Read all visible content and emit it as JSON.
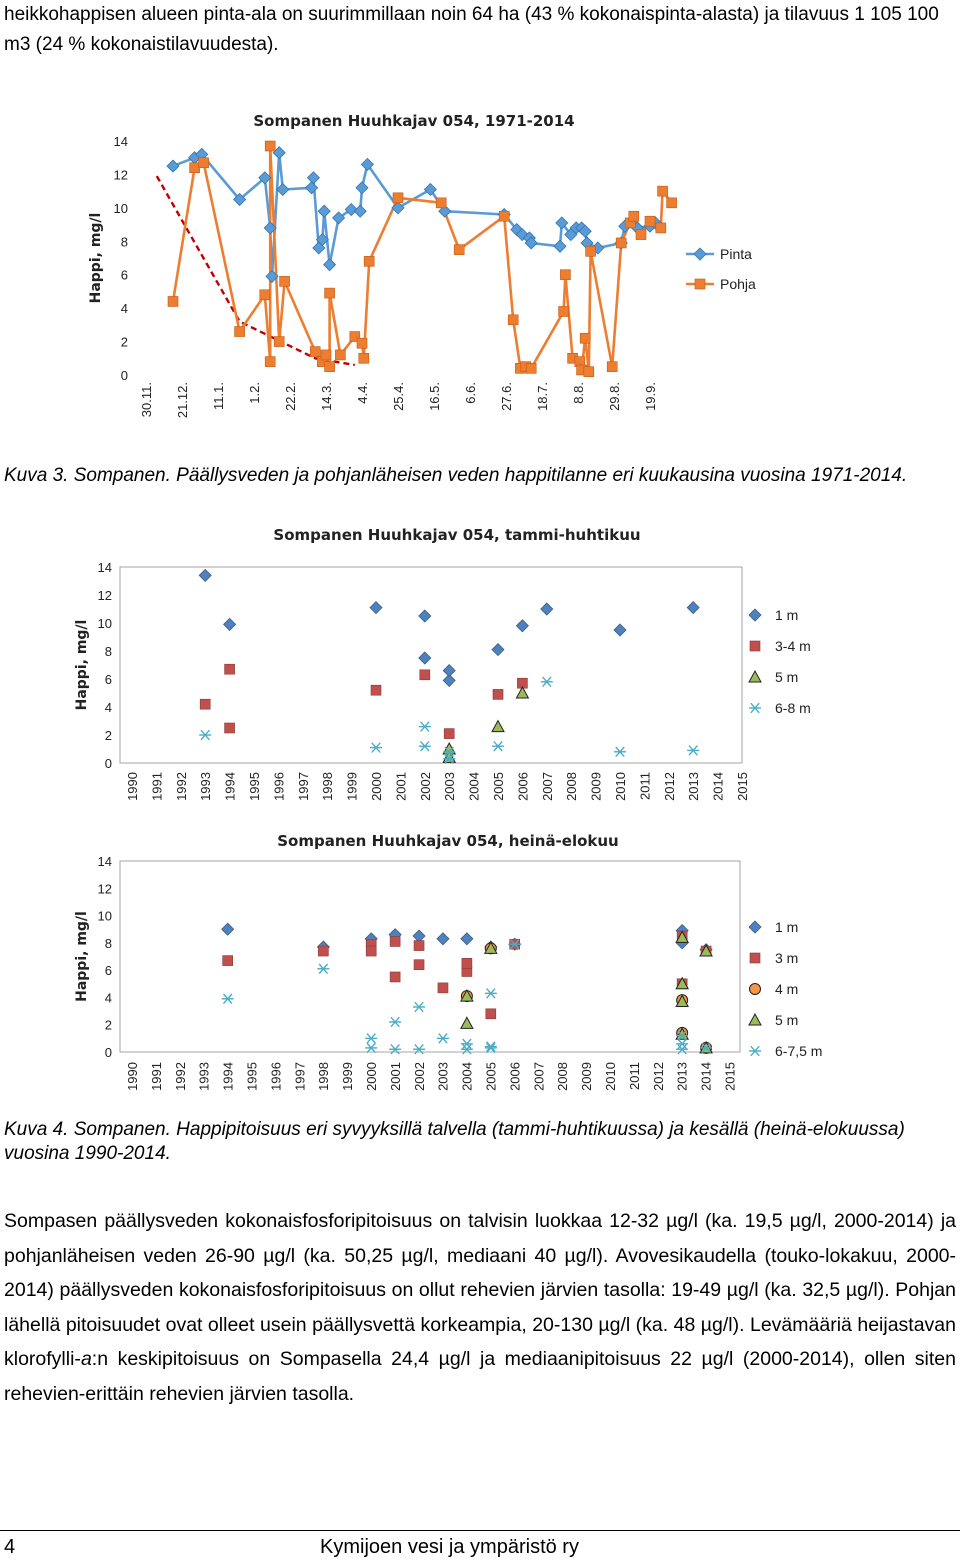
{
  "intro_text": "heikkohappisen alueen pinta-ala on suurimmillaan noin 64 ha (43 % kokonaispinta-alasta) ja tilavuus 1 105 100 m3 (24 % kokonaistilavuudesta).",
  "caption3": "Kuva 3. Sompanen. Päällysveden ja pohjanläheisen veden happitilanne eri kuukausina vuosina 1971-2014.",
  "caption4": "Kuva 4. Sompanen. Happipitoisuus eri syvyyksillä talvella (tammi-huhtikuussa) ja kesällä (heinä-elokuussa) vuosina 1990-2014.",
  "body_pre": "Sompasen päällysveden kokonaisfosforipitoisuus on talvisin luokkaa 12-32 µg/l (ka. 19,5 µg/l, 2000-2014) ja pohjanläheisen veden 26-90 µg/l (ka. 50,25 µg/l, mediaani 40 µg/l). Avovesikaudella (touko-lokakuu, 2000-2014) päällysveden kokonaisfosforipitoisuus on ollut rehevien järvien tasolla: 19-49 µg/l (ka. 32,5 µg/l). Pohjan lähellä pitoisuudet ovat olleet usein päällysvettä korkeampia, 20-130 µg/l (ka. 48 µg/l). Levämääriä heijastavan klorofylli-",
  "body_italic": "a",
  "body_post": ":n keskipitoisuus on Sompasella 24,4 µg/l ja mediaanipitoisuus 22 µg/l (2000-2014), ollen siten rehevien-erittäin rehevien järvien tasolla.",
  "footer": {
    "page": "4",
    "org": "Kymijoen vesi ja ympäristö ry"
  },
  "chart_data": [
    {
      "type": "line",
      "title": "Sompanen Huuhkajav 054, 1971-2014",
      "ylabel": "Happi, mg/l",
      "ylim": [
        0,
        14
      ],
      "yticks": [
        0,
        2,
        4,
        6,
        8,
        10,
        12,
        14
      ],
      "xtick_labels": [
        "30.11.",
        "21.12.",
        "11.1.",
        "1.2.",
        "22.2.",
        "14.3.",
        "4.4.",
        "25.4.",
        "16.5.",
        "6.6.",
        "27.6.",
        "18.7.",
        "8.8.",
        "29.8.",
        "19.9."
      ],
      "x_domain": [
        0,
        14.5
      ],
      "legend_position": "right",
      "colors": {
        "pinta": "#5b9bd5",
        "pohja": "#ed7d31",
        "trend": "#c00000"
      },
      "series": [
        {
          "name": "Pinta",
          "marker": "diamond",
          "color": "#5b9bd5",
          "points": [
            [
              0.75,
              12.5
            ],
            [
              1.35,
              13
            ],
            [
              1.55,
              13.2
            ],
            [
              2.6,
              10.5
            ],
            [
              3.3,
              11.8
            ],
            [
              3.45,
              8.8
            ],
            [
              3.5,
              5.9
            ],
            [
              3.7,
              13.3
            ],
            [
              3.8,
              11.1
            ],
            [
              4.6,
              11.2
            ],
            [
              4.65,
              11.8
            ],
            [
              4.8,
              7.6
            ],
            [
              4.9,
              8.1
            ],
            [
              4.95,
              9.8
            ],
            [
              5.1,
              6.6
            ],
            [
              5.35,
              9.4
            ],
            [
              5.7,
              9.9
            ],
            [
              5.95,
              9.8
            ],
            [
              6.0,
              11.2
            ],
            [
              6.15,
              12.6
            ],
            [
              7.0,
              10
            ],
            [
              7.9,
              11.1
            ],
            [
              8.3,
              9.8
            ],
            [
              9.95,
              9.6
            ],
            [
              10.3,
              8.7
            ],
            [
              10.45,
              8.4
            ],
            [
              10.65,
              8.2
            ],
            [
              10.7,
              7.9
            ],
            [
              11.5,
              7.7
            ],
            [
              11.55,
              9.1
            ],
            [
              11.8,
              8.4
            ],
            [
              11.95,
              8.8
            ],
            [
              12.1,
              8.8
            ],
            [
              12.2,
              8.6
            ],
            [
              12.25,
              7.9
            ],
            [
              12.55,
              7.6
            ],
            [
              13.2,
              7.9
            ],
            [
              13.3,
              8.9
            ],
            [
              13.65,
              8.8
            ],
            [
              14.0,
              8.9
            ],
            [
              14.15,
              9.1
            ]
          ]
        },
        {
          "name": "Pohja",
          "marker": "square",
          "color": "#ed7d31",
          "points": [
            [
              0.75,
              4.4
            ],
            [
              1.35,
              12.4
            ],
            [
              1.6,
              12.7
            ],
            [
              2.6,
              2.6
            ],
            [
              3.3,
              4.8
            ],
            [
              3.45,
              0.8
            ],
            [
              3.45,
              13.7
            ],
            [
              3.7,
              2.0
            ],
            [
              3.85,
              5.6
            ],
            [
              4.7,
              1.4
            ],
            [
              4.9,
              0.8
            ],
            [
              5.0,
              1.2
            ],
            [
              5.1,
              0.5
            ],
            [
              5.1,
              4.9
            ],
            [
              5.4,
              1.2
            ],
            [
              5.8,
              2.3
            ],
            [
              6.0,
              1.9
            ],
            [
              6.05,
              1.0
            ],
            [
              6.2,
              6.8
            ],
            [
              7.0,
              10.6
            ],
            [
              8.2,
              10.3
            ],
            [
              8.7,
              7.5
            ],
            [
              9.95,
              9.5
            ],
            [
              10.2,
              3.3
            ],
            [
              10.4,
              0.4
            ],
            [
              10.55,
              0.5
            ],
            [
              10.7,
              0.4
            ],
            [
              11.6,
              3.8
            ],
            [
              11.65,
              6.0
            ],
            [
              11.85,
              1.0
            ],
            [
              12.05,
              0.8
            ],
            [
              12.1,
              0.3
            ],
            [
              12.2,
              2.2
            ],
            [
              12.3,
              0.2
            ],
            [
              12.35,
              7.4
            ],
            [
              12.95,
              0.5
            ],
            [
              13.2,
              7.9
            ],
            [
              13.45,
              9.1
            ],
            [
              13.55,
              9.5
            ],
            [
              13.75,
              8.4
            ],
            [
              14.0,
              9.2
            ],
            [
              14.3,
              8.8
            ],
            [
              14.35,
              11.0
            ],
            [
              14.6,
              10.3
            ]
          ]
        }
      ],
      "trend": {
        "name": "",
        "dashed": true,
        "points": [
          [
            0.3,
            11.9
          ],
          [
            2.6,
            3.2
          ],
          [
            4.7,
            1.0
          ],
          [
            5.8,
            0.6
          ]
        ]
      }
    },
    {
      "type": "scatter",
      "title": "Sompanen Huuhkajav 054, tammi-huhtikuu",
      "ylabel": "Happi, mg/l",
      "ylim": [
        0,
        14
      ],
      "yticks": [
        0,
        2,
        4,
        6,
        8,
        10,
        12,
        14
      ],
      "xlim": [
        1990,
        2015
      ],
      "categories": [
        "1990",
        "1991",
        "1992",
        "1993",
        "1994",
        "1995",
        "1996",
        "1997",
        "1998",
        "1999",
        "2000",
        "2001",
        "2002",
        "2003",
        "2004",
        "2005",
        "2006",
        "2007",
        "2008",
        "2009",
        "2010",
        "2011",
        "2012",
        "2013",
        "2014",
        "2015"
      ],
      "legend_position": "right",
      "series": [
        {
          "name": "1 m",
          "marker": "diamond",
          "color": "#4f81bd",
          "points": [
            [
              1993,
              13.4
            ],
            [
              1994,
              9.9
            ],
            [
              2000,
              11.1
            ],
            [
              2002,
              10.5
            ],
            [
              2002,
              7.5
            ],
            [
              2003,
              5.9
            ],
            [
              2003,
              6.6
            ],
            [
              2005,
              8.1
            ],
            [
              2006,
              9.8
            ],
            [
              2007,
              11.0
            ],
            [
              2010,
              9.5
            ],
            [
              2013,
              11.1
            ]
          ]
        },
        {
          "name": "3-4 m",
          "marker": "square",
          "color": "#c0504d",
          "points": [
            [
              1993,
              4.2
            ],
            [
              1994,
              6.7
            ],
            [
              1994,
              2.5
            ],
            [
              2000,
              5.2
            ],
            [
              2002,
              6.3
            ],
            [
              2003,
              2.1
            ],
            [
              2005,
              4.9
            ],
            [
              2006,
              5.7
            ]
          ]
        },
        {
          "name": "5 m",
          "marker": "triangle",
          "color": "#9bbb59",
          "points": [
            [
              2003,
              1.0
            ],
            [
              2003,
              0.4
            ],
            [
              2005,
              2.6
            ],
            [
              2006,
              5.0
            ]
          ]
        },
        {
          "name": "6-8 m",
          "marker": "asterisk",
          "color": "#4bacc6",
          "points": [
            [
              1993,
              2.0
            ],
            [
              2000,
              1.1
            ],
            [
              2002,
              2.6
            ],
            [
              2002,
              1.2
            ],
            [
              2003,
              0.8
            ],
            [
              2003,
              0.3
            ],
            [
              2005,
              1.2
            ],
            [
              2007,
              5.8
            ],
            [
              2010,
              0.8
            ],
            [
              2013,
              0.9
            ]
          ]
        }
      ]
    },
    {
      "type": "scatter",
      "title": "Sompanen Huuhkajav 054, heinä-elokuu",
      "ylabel": "Happi, mg/l",
      "ylim": [
        0,
        14
      ],
      "yticks": [
        0,
        2,
        4,
        6,
        8,
        10,
        12,
        14
      ],
      "xlim": [
        1990,
        2015
      ],
      "categories": [
        "1990",
        "1991",
        "1992",
        "1993",
        "1994",
        "1995",
        "1996",
        "1997",
        "1998",
        "1999",
        "2000",
        "2001",
        "2002",
        "2003",
        "2004",
        "2005",
        "2006",
        "2007",
        "2008",
        "2009",
        "2010",
        "2011",
        "2012",
        "2013",
        "2014",
        "2015"
      ],
      "legend_position": "right",
      "series": [
        {
          "name": "1 m",
          "marker": "diamond",
          "color": "#4f81bd",
          "points": [
            [
              1994,
              9.0
            ],
            [
              1998,
              7.7
            ],
            [
              2000,
              8.3
            ],
            [
              2001,
              8.6
            ],
            [
              2002,
              8.5
            ],
            [
              2003,
              8.3
            ],
            [
              2004,
              8.3
            ],
            [
              2005,
              7.7
            ],
            [
              2006,
              7.9
            ],
            [
              2013,
              8.9
            ],
            [
              2013,
              8.0
            ],
            [
              2014,
              7.5
            ]
          ]
        },
        {
          "name": "3 m",
          "marker": "square",
          "color": "#c0504d",
          "points": [
            [
              1994,
              6.7
            ],
            [
              1998,
              7.4
            ],
            [
              2000,
              7.9
            ],
            [
              2000,
              7.4
            ],
            [
              2001,
              8.1
            ],
            [
              2001,
              5.5
            ],
            [
              2002,
              7.8
            ],
            [
              2002,
              6.4
            ],
            [
              2003,
              4.7
            ],
            [
              2004,
              5.9
            ],
            [
              2004,
              6.5
            ],
            [
              2005,
              2.8
            ],
            [
              2006,
              7.9
            ],
            [
              2013,
              8.5
            ],
            [
              2013,
              5.0
            ],
            [
              2014,
              7.4
            ]
          ]
        },
        {
          "name": "4 m",
          "marker": "circle",
          "color": "#f79646",
          "points": [
            [
              2004,
              4.1
            ],
            [
              2005,
              7.6
            ],
            [
              2013,
              3.8
            ],
            [
              2013,
              1.4
            ],
            [
              2014,
              0.3
            ]
          ]
        },
        {
          "name": "5 m",
          "marker": "triangle",
          "color": "#9bbb59",
          "points": [
            [
              2004,
              2.1
            ],
            [
              2004,
              4.1
            ],
            [
              2005,
              7.6
            ],
            [
              2013,
              8.4
            ],
            [
              2013,
              5.0
            ],
            [
              2013,
              3.7
            ],
            [
              2013,
              1.3
            ],
            [
              2014,
              7.4
            ],
            [
              2014,
              0.3
            ]
          ]
        },
        {
          "name": "6-7,5 m",
          "marker": "asterisk",
          "color": "#4bacc6",
          "points": [
            [
              1994,
              3.9
            ],
            [
              1998,
              6.1
            ],
            [
              2000,
              1.0
            ],
            [
              2000,
              0.3
            ],
            [
              2001,
              2.2
            ],
            [
              2001,
              0.2
            ],
            [
              2002,
              3.3
            ],
            [
              2002,
              0.2
            ],
            [
              2003,
              1.0
            ],
            [
              2004,
              0.6
            ],
            [
              2004,
              0.2
            ],
            [
              2005,
              4.3
            ],
            [
              2005,
              0.4
            ],
            [
              2005,
              0.3
            ],
            [
              2006,
              7.9
            ],
            [
              2013,
              1.2
            ],
            [
              2013,
              0.6
            ],
            [
              2013,
              0.2
            ],
            [
              2014,
              0.3
            ]
          ]
        }
      ]
    }
  ]
}
